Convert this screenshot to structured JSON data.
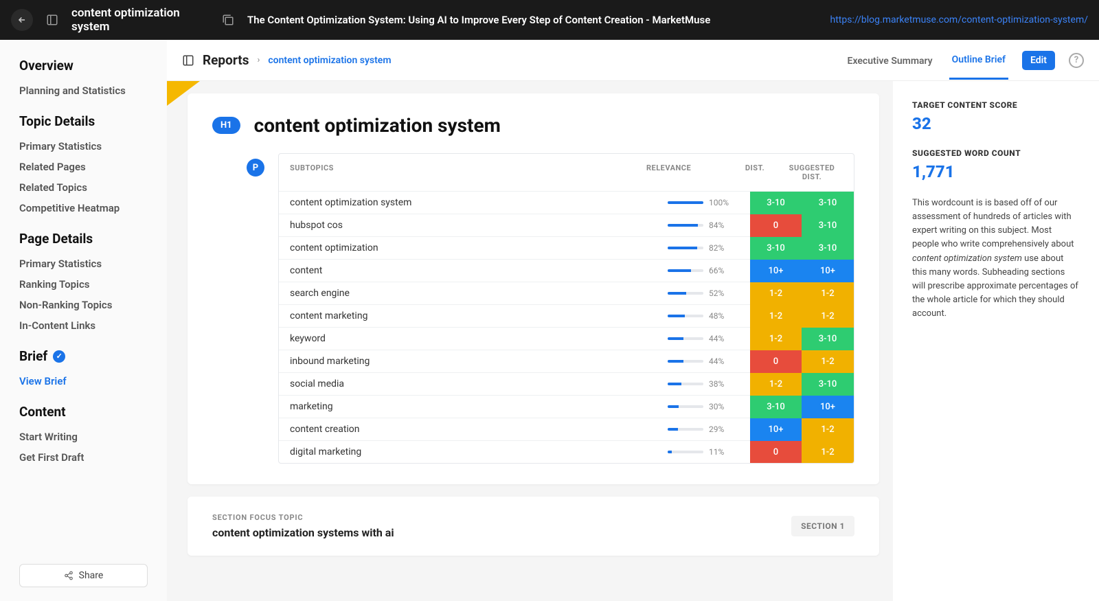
{
  "colors": {
    "green": "#2ecc71",
    "red": "#e74c3c",
    "yellow": "#f1b100",
    "blue": "#1a84f0",
    "bar": "#1a73e8"
  },
  "topbar": {
    "query": "content optimization system",
    "page_title": "The Content Optimization System: Using AI to Improve Every Step of Content Creation - MarketMuse",
    "url": "https://blog.marketmuse.com/content-optimization-system/"
  },
  "sidebar": {
    "sections": [
      {
        "title": "Overview",
        "items": [
          "Planning and Statistics"
        ]
      },
      {
        "title": "Topic Details",
        "items": [
          "Primary Statistics",
          "Related Pages",
          "Related Topics",
          "Competitive Heatmap"
        ]
      },
      {
        "title": "Page Details",
        "items": [
          "Primary Statistics",
          "Ranking Topics",
          "Non-Ranking Topics",
          "In-Content Links"
        ]
      },
      {
        "title": "Brief",
        "badge": true,
        "items": [
          "View Brief"
        ],
        "active_item": "View Brief"
      },
      {
        "title": "Content",
        "items": [
          "Start Writing",
          "Get First Draft"
        ]
      }
    ],
    "share": "Share"
  },
  "toolbar": {
    "reports": "Reports",
    "crumb": "content optimization system",
    "tabs": [
      {
        "label": "Executive Summary",
        "active": false
      },
      {
        "label": "Outline Brief",
        "active": true
      }
    ],
    "edit": "Edit"
  },
  "h1": {
    "badge": "H1",
    "text": "content optimization system"
  },
  "p_badge": "P",
  "table": {
    "headers": {
      "subtopics": "SUBTOPICS",
      "relevance": "RELEVANCE",
      "dist": "DIST.",
      "suggested": "SUGGESTED DIST."
    },
    "rows": [
      {
        "subtopic": "content optimization system",
        "relevance": 100,
        "dist": "3-10",
        "dist_color": "green",
        "sug": "3-10",
        "sug_color": "green"
      },
      {
        "subtopic": "hubspot cos",
        "relevance": 84,
        "dist": "0",
        "dist_color": "red",
        "sug": "3-10",
        "sug_color": "green"
      },
      {
        "subtopic": "content optimization",
        "relevance": 82,
        "dist": "3-10",
        "dist_color": "green",
        "sug": "3-10",
        "sug_color": "green"
      },
      {
        "subtopic": "content",
        "relevance": 66,
        "dist": "10+",
        "dist_color": "blue",
        "sug": "10+",
        "sug_color": "blue"
      },
      {
        "subtopic": "search engine",
        "relevance": 52,
        "dist": "1-2",
        "dist_color": "yellow",
        "sug": "1-2",
        "sug_color": "yellow"
      },
      {
        "subtopic": "content marketing",
        "relevance": 48,
        "dist": "1-2",
        "dist_color": "yellow",
        "sug": "1-2",
        "sug_color": "yellow"
      },
      {
        "subtopic": "keyword",
        "relevance": 44,
        "dist": "1-2",
        "dist_color": "yellow",
        "sug": "3-10",
        "sug_color": "green"
      },
      {
        "subtopic": "inbound marketing",
        "relevance": 44,
        "dist": "0",
        "dist_color": "red",
        "sug": "1-2",
        "sug_color": "yellow"
      },
      {
        "subtopic": "social media",
        "relevance": 38,
        "dist": "1-2",
        "dist_color": "yellow",
        "sug": "3-10",
        "sug_color": "green"
      },
      {
        "subtopic": "marketing",
        "relevance": 30,
        "dist": "3-10",
        "dist_color": "green",
        "sug": "10+",
        "sug_color": "blue"
      },
      {
        "subtopic": "content creation",
        "relevance": 29,
        "dist": "10+",
        "dist_color": "blue",
        "sug": "1-2",
        "sug_color": "yellow"
      },
      {
        "subtopic": "digital marketing",
        "relevance": 11,
        "dist": "0",
        "dist_color": "red",
        "sug": "1-2",
        "sug_color": "yellow"
      }
    ]
  },
  "section2": {
    "label": "SECTION FOCUS TOPIC",
    "value": "content optimization systems with ai",
    "pill": "SECTION 1"
  },
  "rightpane": {
    "target_label": "TARGET CONTENT SCORE",
    "target_value": "32",
    "wordcount_label": "SUGGESTED WORD COUNT",
    "wordcount_value": "1,771",
    "desc_before": "This wordcount is is based off of our assessment of hundreds of articles with expert writing on this subject. Most people who write comprehensively about ",
    "desc_em": "content optimization system",
    "desc_after": " use about this many words. Subheading sections will prescribe approximate percentages of the whole article for which they should account."
  }
}
